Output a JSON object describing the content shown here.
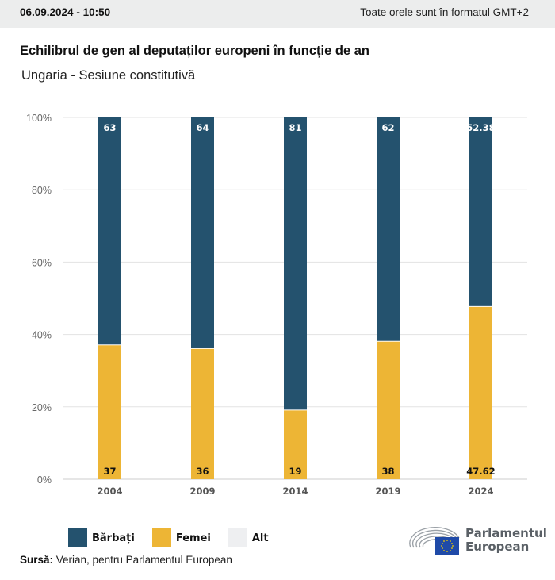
{
  "header": {
    "date": "06.09.2024 - 10:50",
    "timezone_note": "Toate orele sunt în formatul GMT+2"
  },
  "chart_data": {
    "type": "bar",
    "stacked": true,
    "title": "Echilibrul de gen al deputaților europeni în funcție de an",
    "subtitle": "Ungaria - Sesiune constitutivă",
    "categories": [
      "2004",
      "2009",
      "2014",
      "2019",
      "2024"
    ],
    "series": [
      {
        "name": "Bărbați",
        "color": "#24526e",
        "values": [
          63,
          64,
          81,
          62,
          52.38
        ],
        "labels": [
          "63",
          "64",
          "81",
          "62",
          "52.38"
        ]
      },
      {
        "name": "Femei",
        "color": "#edb535",
        "values": [
          37,
          36,
          19,
          38,
          47.62
        ],
        "labels": [
          "37",
          "36",
          "19",
          "38",
          "47.62"
        ]
      },
      {
        "name": "Alt",
        "color": "#eeeff1",
        "values": [
          0,
          0,
          0,
          0,
          0
        ],
        "labels": []
      }
    ],
    "xlabel": "",
    "ylabel": "",
    "ylim": [
      0,
      100
    ],
    "yticks": [
      "0%",
      "20%",
      "40%",
      "60%",
      "80%",
      "100%"
    ],
    "ytick_values": [
      0,
      20,
      40,
      60,
      80,
      100
    ],
    "grid": true,
    "legend_position": "bottom-left"
  },
  "legend": [
    {
      "label": "Bărbați",
      "color": "#24526e"
    },
    {
      "label": "Femei",
      "color": "#edb535"
    },
    {
      "label": "Alt",
      "color": "#eeeff1"
    }
  ],
  "source": {
    "label": "Sursă:",
    "text": " Verian, pentru Parlamentul European"
  },
  "logo": {
    "line1": "Parlamentul",
    "line2": "European"
  }
}
